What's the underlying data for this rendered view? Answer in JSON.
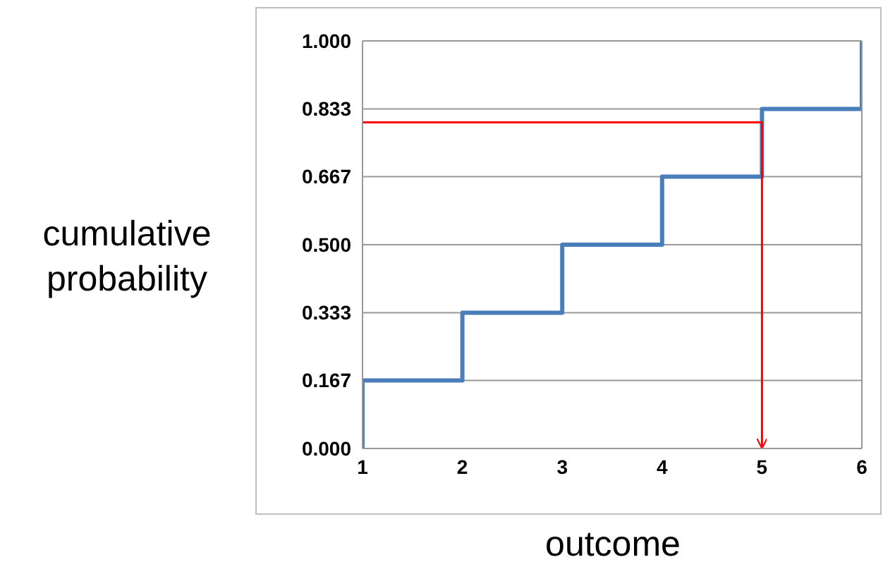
{
  "chart_data": {
    "type": "step",
    "xlabel": "outcome",
    "ylabel": "cumulative probability",
    "xlim": [
      1,
      6
    ],
    "xticks": [
      1,
      2,
      3,
      4,
      5,
      6
    ],
    "ylim": [
      0,
      1
    ],
    "yticks": [
      {
        "value": 0,
        "label": "0.000"
      },
      {
        "value": 0.167,
        "label": "0.167"
      },
      {
        "value": 0.333,
        "label": "0.333"
      },
      {
        "value": 0.5,
        "label": "0.500"
      },
      {
        "value": 0.667,
        "label": "0.667"
      },
      {
        "value": 0.833,
        "label": "0.833"
      },
      {
        "value": 1,
        "label": "1.000"
      }
    ],
    "grid": "y",
    "series": [
      {
        "color": "#4a7ebb",
        "x": [
          1,
          1,
          2,
          3,
          4,
          5,
          6
        ],
        "values": [
          0,
          0.167,
          0.333,
          0.5,
          0.667,
          0.833,
          1
        ]
      },
      {
        "type": "line",
        "color": "#ff0000",
        "x": [
          1,
          5,
          5
        ],
        "values": [
          0.8,
          0.8,
          0
        ]
      }
    ]
  }
}
